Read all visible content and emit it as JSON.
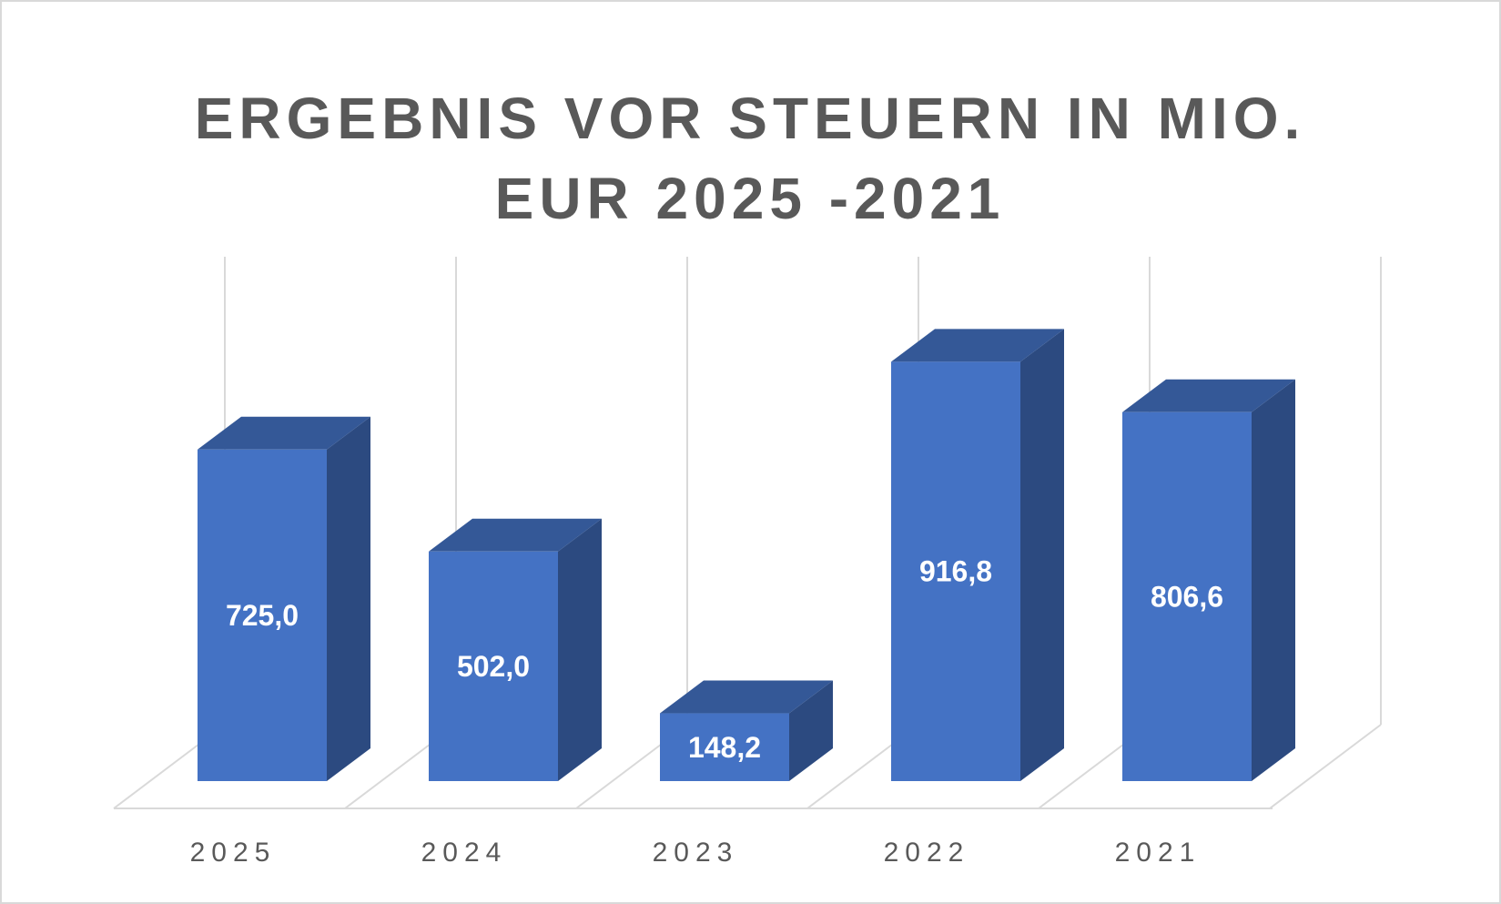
{
  "chart_data": {
    "type": "bar",
    "title": "ERGEBNIS VOR STEUERN IN MIO. EUR 2025 -2021",
    "title_lines": [
      "ERGEBNIS VOR STEUERN IN MIO.",
      "EUR 2025 -2021"
    ],
    "categories": [
      "2025",
      "2024",
      "2023",
      "2022",
      "2021"
    ],
    "values": [
      725.0,
      502.0,
      148.2,
      916.8,
      806.6
    ],
    "value_labels": [
      "725,0",
      "502,0",
      "148,2",
      "916,8",
      "806,6"
    ],
    "xlabel": "",
    "ylabel": "",
    "ylim": [
      0,
      1000
    ],
    "grid": true,
    "legend": "none",
    "style": "3d-column"
  },
  "colors": {
    "bar_front": "#4472c4",
    "bar_side": "#2c4a80",
    "bar_top": "#345897",
    "grid": "#d9d9d9",
    "frame_border": "#d9d9d9",
    "title": "#595959",
    "tick_text": "#595959",
    "value_text": "#ffffff"
  }
}
